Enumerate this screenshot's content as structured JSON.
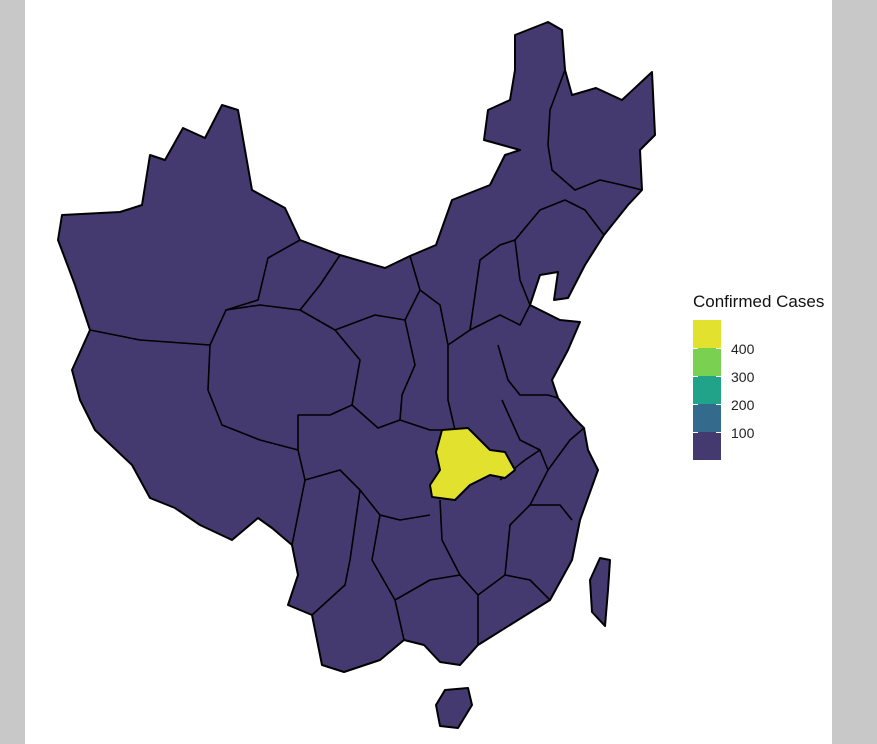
{
  "map": {
    "colors": {
      "low": "#443a70",
      "step_200": "#346a8c",
      "step_300": "#21a38a",
      "step_400": "#7ad151",
      "high": "#e2e22e",
      "border": "#000000"
    }
  },
  "legend": {
    "title": "Confirmed Cases",
    "ticks": [
      "400",
      "300",
      "200",
      "100"
    ],
    "swatch_colors": [
      "#e2e22e",
      "#7ad151",
      "#21a38a",
      "#346a8c",
      "#443a70"
    ]
  }
}
